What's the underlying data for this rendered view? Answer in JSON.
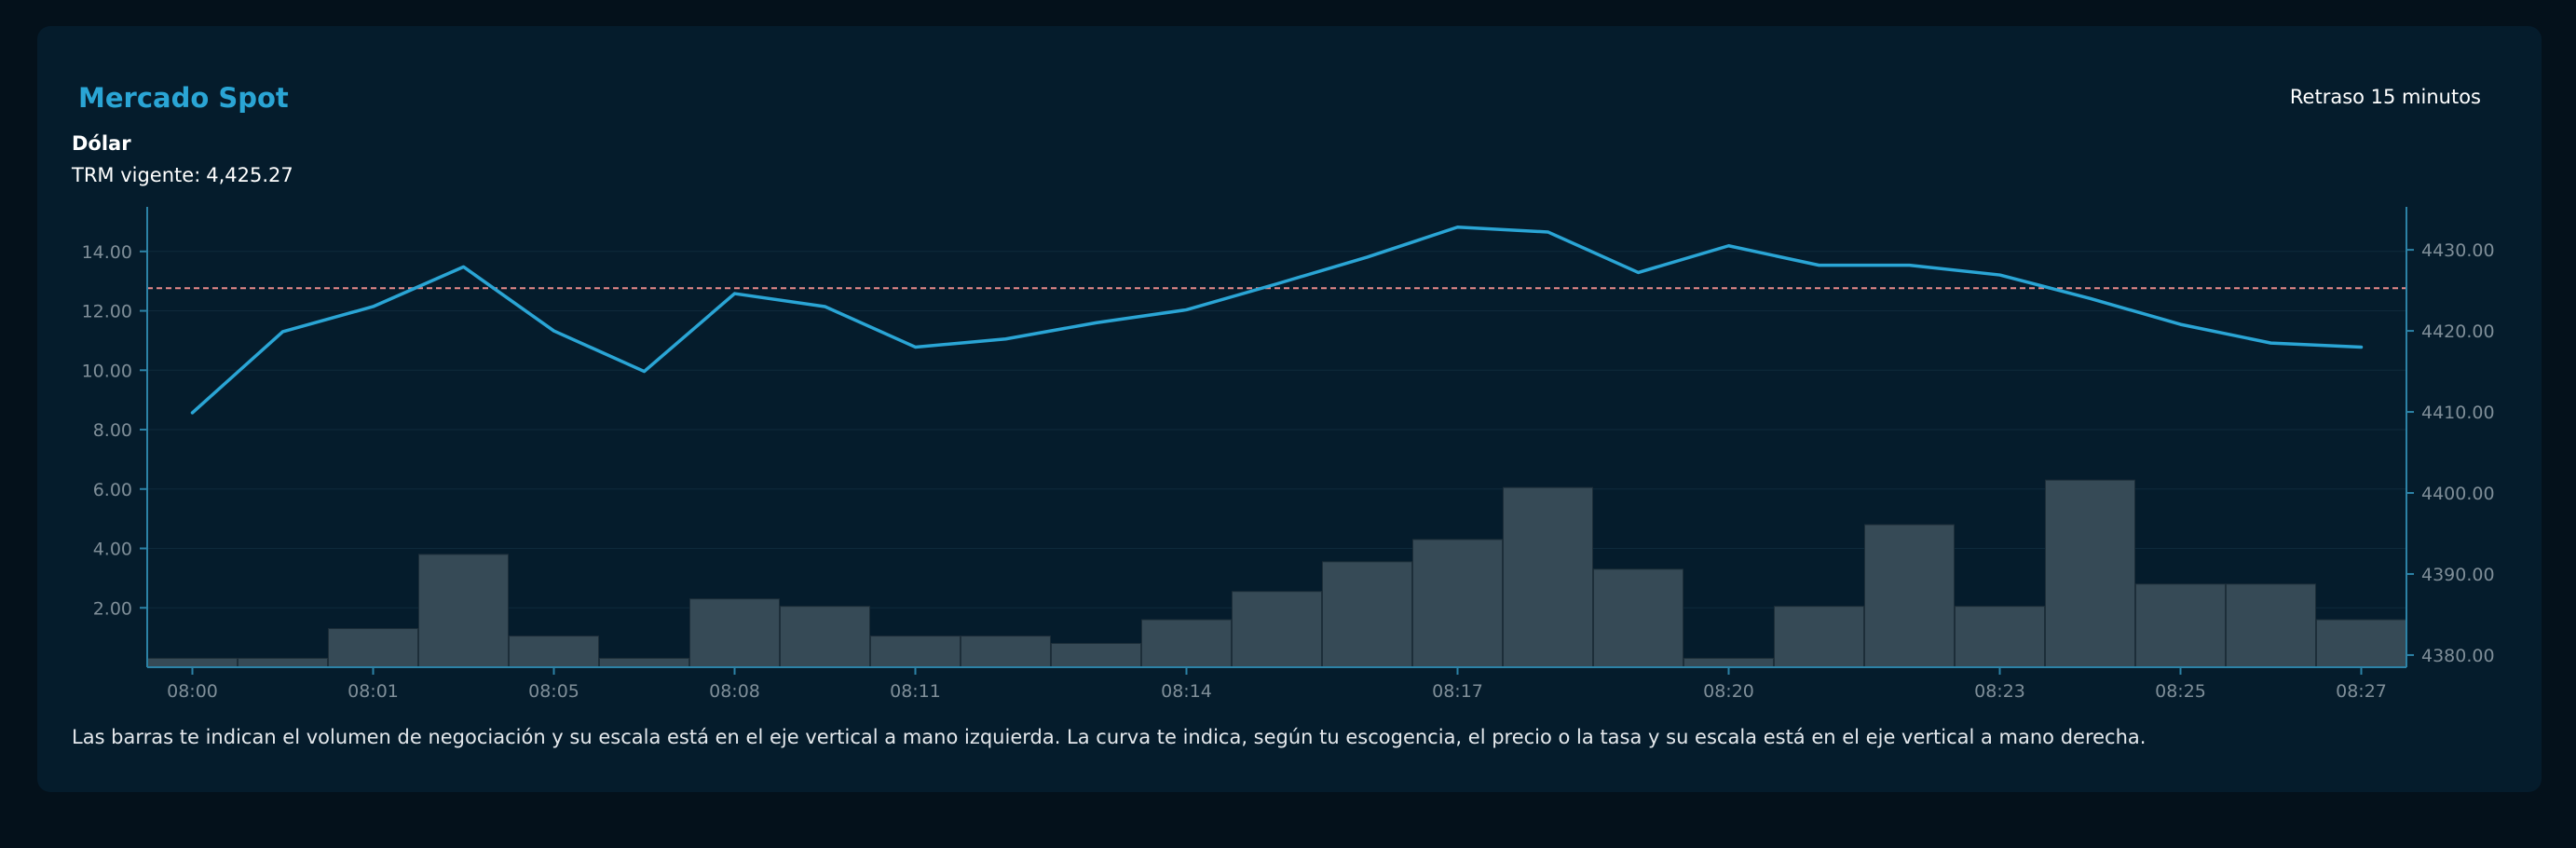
{
  "header": {
    "title": "Mercado Spot",
    "delay_label": "Retraso 15 minutos",
    "instrument": "Dólar",
    "trm_label": "TRM vigente:",
    "trm_value": "4,425.27"
  },
  "footer": {
    "caption": "Las barras te indican el volumen de negociación y su escala está en el eje vertical a mano izquierda. La curva te indica, según tu escogencia, el precio o la tasa y su escala está en el eje vertical a mano derecha."
  },
  "colors": {
    "line": "#2aa5d5",
    "bar_fill": "#364a56",
    "bar_stroke": "#1d2e39",
    "reference": "#e98a8a",
    "axis": "#2c82a6",
    "tick_text": "#7f8e98",
    "grid": "#0f2a3b"
  },
  "chart_data": {
    "type": "bar+line",
    "x_tick_labels": [
      "08:00",
      "08:01",
      "08:05",
      "08:08",
      "08:11",
      "08:14",
      "08:17",
      "08:20",
      "08:23",
      "08:25",
      "08:27"
    ],
    "x_tick_slots": [
      0,
      2,
      4,
      6,
      8,
      11,
      14,
      17,
      20,
      22,
      24
    ],
    "left_axis": {
      "range": [
        0,
        15.5
      ],
      "ticks": [
        2,
        4,
        6,
        8,
        10,
        12,
        14
      ],
      "tick_labels": [
        "2.00",
        "4.00",
        "6.00",
        "8.00",
        "10.00",
        "12.00",
        "14.00"
      ],
      "series": "volume"
    },
    "right_axis": {
      "range": [
        4378.5,
        4435.3
      ],
      "ticks": [
        4380,
        4390,
        4400,
        4410,
        4420,
        4430
      ],
      "tick_labels": [
        "4380.00",
        "4390.00",
        "4400.00",
        "4410.00",
        "4420.00",
        "4430.00"
      ],
      "series": "price"
    },
    "series": [
      {
        "name": "volume",
        "type": "bar",
        "axis": "left",
        "values": [
          0.3,
          0.3,
          1.3,
          3.8,
          1.05,
          0.3,
          2.3,
          2.05,
          1.05,
          1.05,
          0.8,
          1.6,
          2.55,
          3.55,
          4.3,
          6.05,
          3.3,
          0.3,
          2.05,
          4.8,
          2.05,
          6.3,
          2.8,
          2.8,
          1.6
        ]
      },
      {
        "name": "price",
        "type": "line",
        "axis": "right",
        "values": [
          4409.9,
          4419.9,
          4423.0,
          4427.9,
          4420.0,
          4415.0,
          4424.6,
          4423.0,
          4418.0,
          4419.0,
          4421.0,
          4422.6,
          4425.8,
          4429.1,
          4432.8,
          4432.2,
          4427.2,
          4430.5,
          4428.1,
          4428.1,
          4426.9,
          4424.0,
          4420.8,
          4418.5,
          4418.0
        ]
      }
    ],
    "reference_line": {
      "label": "TRM",
      "value": 4425.27,
      "axis": "right"
    }
  }
}
